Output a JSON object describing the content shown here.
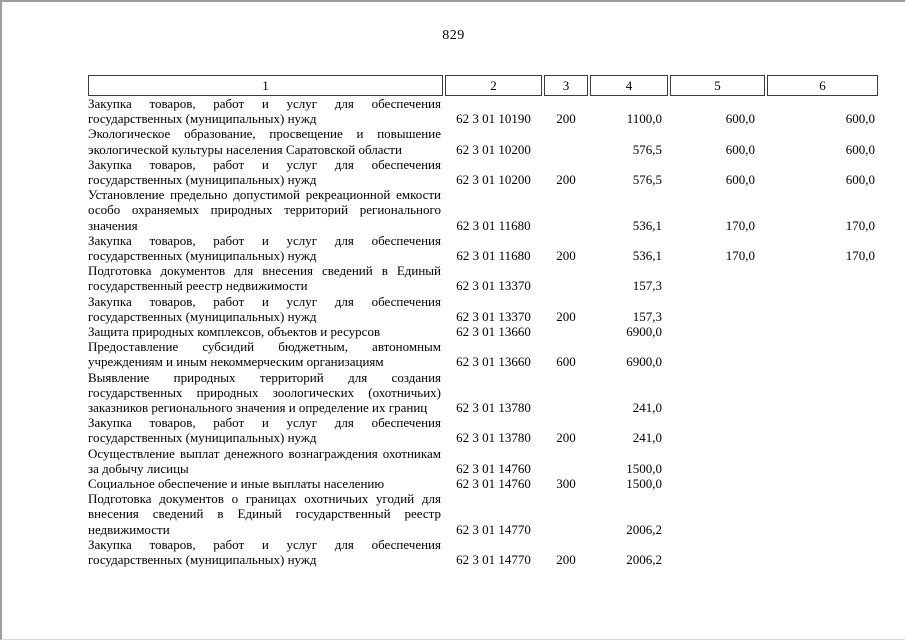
{
  "page": {
    "number": "829"
  },
  "colors": {
    "page_background": "#ffffff",
    "frame_border": "#9e9e9e",
    "table_border": "#3c3c3c",
    "text": "#000000"
  },
  "table": {
    "headers": [
      "1",
      "2",
      "3",
      "4",
      "5",
      "6"
    ],
    "rows": [
      {
        "desc": "Закупка товаров, работ и услуг для обеспечения государственных (муниципальных) нужд",
        "code": "62 3 01 10190",
        "type": "200",
        "a1": "1100,0",
        "a2": "600,0",
        "a3": "600,0"
      },
      {
        "desc": "Экологическое образование, просвещение и повышение экологической культуры населения Саратовской области",
        "code": "62 3 01 10200",
        "type": "",
        "a1": "576,5",
        "a2": "600,0",
        "a3": "600,0"
      },
      {
        "desc": "Закупка товаров, работ и услуг для обеспечения государственных (муниципальных) нужд",
        "code": "62 3 01 10200",
        "type": "200",
        "a1": "576,5",
        "a2": "600,0",
        "a3": "600,0"
      },
      {
        "desc": "Установление предельно допустимой рекреационной емкости особо охраняемых природных территорий регионального значения",
        "code": "62 3 01 11680",
        "type": "",
        "a1": "536,1",
        "a2": "170,0",
        "a3": "170,0"
      },
      {
        "desc": "Закупка товаров, работ и услуг для обеспечения государственных (муниципальных) нужд",
        "code": "62 3 01 11680",
        "type": "200",
        "a1": "536,1",
        "a2": "170,0",
        "a3": "170,0"
      },
      {
        "desc": "Подготовка документов для внесения сведений в Единый государственный реестр недвижимости",
        "code": "62 3 01 13370",
        "type": "",
        "a1": "157,3",
        "a2": "",
        "a3": ""
      },
      {
        "desc": "Закупка товаров, работ и услуг для обеспечения государственных (муниципальных) нужд",
        "code": "62 3 01 13370",
        "type": "200",
        "a1": "157,3",
        "a2": "",
        "a3": ""
      },
      {
        "desc": "Защита природных комплексов, объектов и ресурсов",
        "code": "62 3 01 13660",
        "type": "",
        "a1": "6900,0",
        "a2": "",
        "a3": ""
      },
      {
        "desc": "Предоставление субсидий бюджетным, автономным учреждениям и иным некоммерческим организациям",
        "code": "62 3 01 13660",
        "type": "600",
        "a1": "6900,0",
        "a2": "",
        "a3": ""
      },
      {
        "desc": "Выявление природных территорий для создания государственных природных зоологических (охотничьих) заказников регионального значения и определение их границ",
        "code": "62 3 01 13780",
        "type": "",
        "a1": "241,0",
        "a2": "",
        "a3": ""
      },
      {
        "desc": "Закупка товаров, работ и услуг для обеспечения государственных (муниципальных) нужд",
        "code": "62 3 01 13780",
        "type": "200",
        "a1": "241,0",
        "a2": "",
        "a3": ""
      },
      {
        "desc": "Осуществление выплат денежного вознаграждения охотникам за добычу лисицы",
        "code": "62 3 01 14760",
        "type": "",
        "a1": "1500,0",
        "a2": "",
        "a3": ""
      },
      {
        "desc": "Социальное обеспечение и иные выплаты населению",
        "code": "62 3 01 14760",
        "type": "300",
        "a1": "1500,0",
        "a2": "",
        "a3": ""
      },
      {
        "desc": "Подготовка документов о границах охотничьих угодий для внесения сведений в Единый государственный реестр недвижимости",
        "code": "62 3 01 14770",
        "type": "",
        "a1": "2006,2",
        "a2": "",
        "a3": ""
      },
      {
        "desc": "Закупка товаров, работ и услуг для обеспечения государственных (муниципальных) нужд",
        "code": "62 3 01 14770",
        "type": "200",
        "a1": "2006,2",
        "a2": "",
        "a3": ""
      }
    ]
  }
}
